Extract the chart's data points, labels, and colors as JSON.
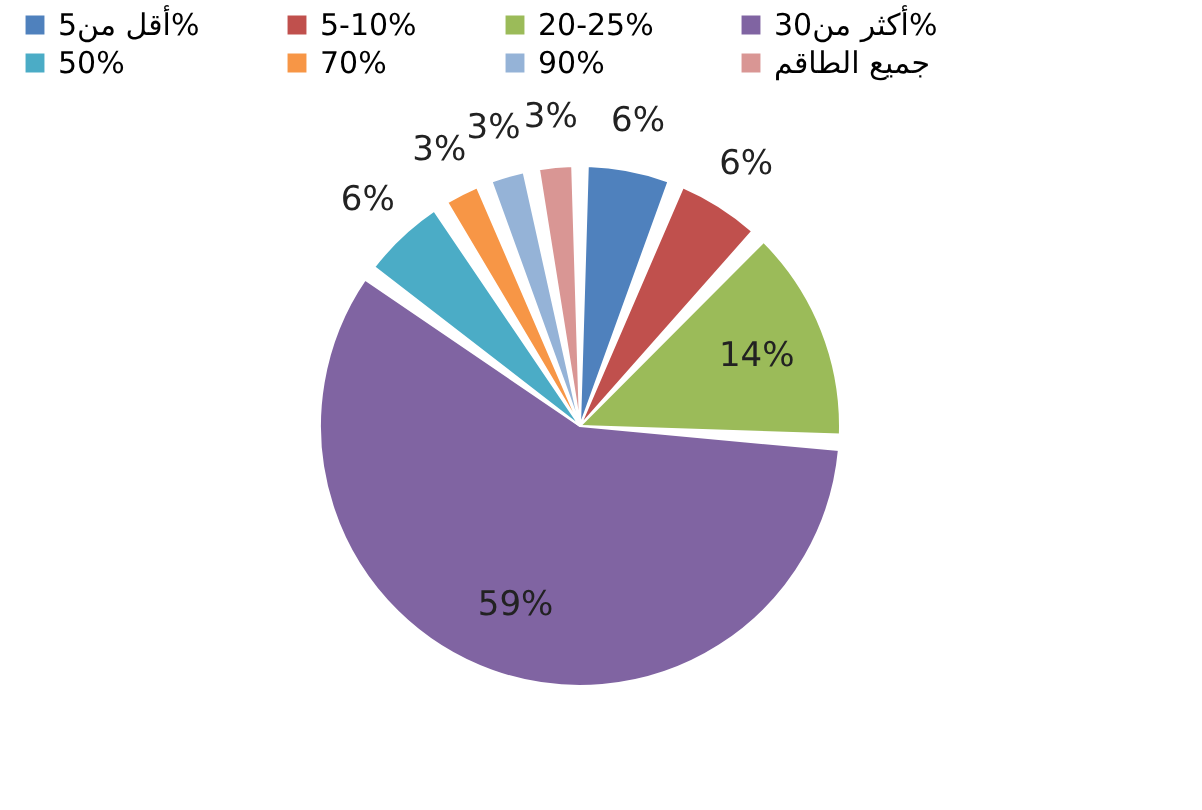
{
  "chart_data": {
    "type": "pie",
    "categories": [
      "أقل من5%",
      "5-10%",
      "20-25%",
      "أكثر من30%",
      "50%",
      "70%",
      "90%",
      "جميع الطاقم"
    ],
    "values": [
      6,
      6,
      14,
      59,
      6,
      3,
      3,
      3
    ],
    "colors": [
      "#4f81bd",
      "#c0504d",
      "#9bbb59",
      "#8064a2",
      "#4bacc6",
      "#f79646",
      "#95b3d7",
      "#d99694"
    ],
    "value_labels": [
      "6%",
      "6%",
      "14%",
      "59%",
      "6%",
      "3%",
      "3%",
      "3%"
    ],
    "legend": "top"
  }
}
